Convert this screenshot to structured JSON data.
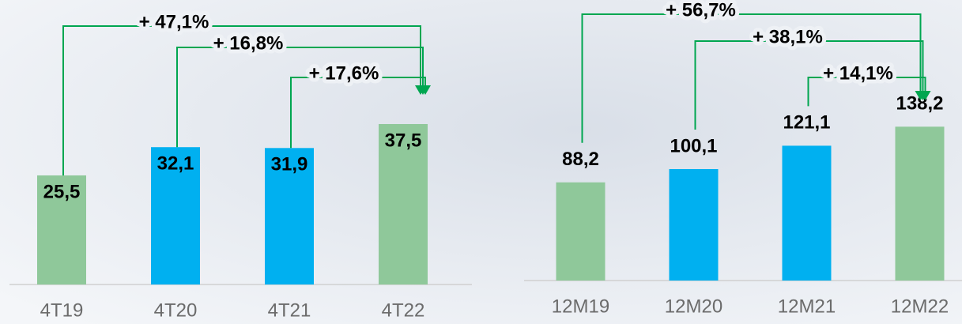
{
  "chart_data": [
    {
      "type": "bar",
      "categories": [
        "4T19",
        "4T20",
        "4T21",
        "4T22"
      ],
      "values": [
        25.5,
        32.1,
        31.9,
        37.5
      ],
      "value_labels": [
        "25,5",
        "32,1",
        "31,9",
        "37,5"
      ],
      "colors": [
        "#8fc89a",
        "#00b0f0",
        "#00b0f0",
        "#8fc89a"
      ],
      "ylim": [
        0,
        66.5
      ],
      "annotations": [
        {
          "text": "+ 47,1%",
          "from": 0,
          "to": 3
        },
        {
          "text": "+ 16,8%",
          "from": 1,
          "to": 3
        },
        {
          "text": "+ 17,6%",
          "from": 2,
          "to": 3
        }
      ],
      "annotation_color": "#00a650"
    },
    {
      "type": "bar",
      "categories": [
        "12M19",
        "12M20",
        "12M21",
        "12M22"
      ],
      "values": [
        88.2,
        100.1,
        121.1,
        138.2
      ],
      "value_labels": [
        "88,2",
        "100,1",
        "121,1",
        "138,2"
      ],
      "colors": [
        "#8fc89a",
        "#00b0f0",
        "#00b0f0",
        "#8fc89a"
      ],
      "ylim": [
        0,
        252
      ],
      "annotations": [
        {
          "text": "+ 56,7%",
          "from": 0,
          "to": 3
        },
        {
          "text": "+ 38,1%",
          "from": 1,
          "to": 3
        },
        {
          "text": "+ 14,1%",
          "from": 2,
          "to": 3
        }
      ],
      "annotation_color": "#00a650"
    }
  ]
}
